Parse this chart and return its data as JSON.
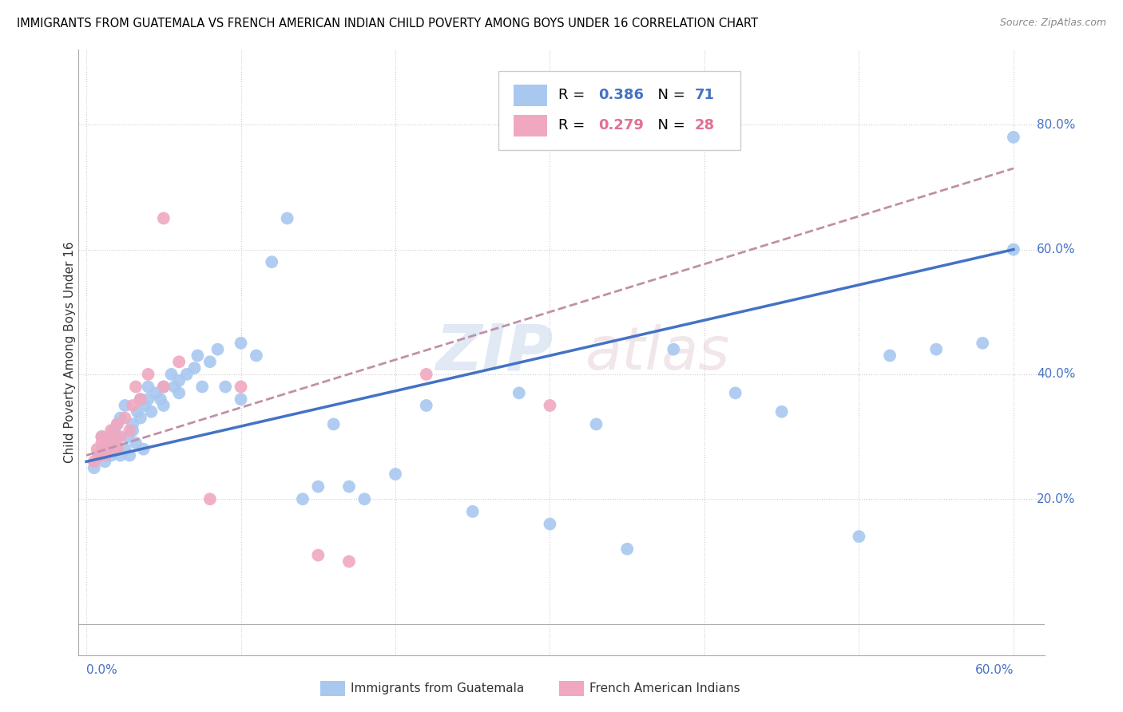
{
  "title": "IMMIGRANTS FROM GUATEMALA VS FRENCH AMERICAN INDIAN CHILD POVERTY AMONG BOYS UNDER 16 CORRELATION CHART",
  "source": "Source: ZipAtlas.com",
  "ylabel": "Child Poverty Among Boys Under 16",
  "y_ticks": [
    "20.0%",
    "40.0%",
    "60.0%",
    "80.0%"
  ],
  "y_tick_vals": [
    0.2,
    0.4,
    0.6,
    0.8
  ],
  "xlim": [
    0.0,
    0.62
  ],
  "ylim": [
    -0.05,
    0.92
  ],
  "color_blue": "#a8c8f0",
  "color_pink": "#f0a8c0",
  "color_blue_line": "#4472c4",
  "color_pink_line": "#c090a8",
  "color_blue_text": "#4472c4",
  "color_pink_text": "#e07090",
  "blue_x": [
    0.005,
    0.008,
    0.01,
    0.01,
    0.012,
    0.013,
    0.015,
    0.015,
    0.016,
    0.018,
    0.019,
    0.02,
    0.02,
    0.022,
    0.022,
    0.025,
    0.025,
    0.027,
    0.028,
    0.03,
    0.03,
    0.032,
    0.033,
    0.035,
    0.035,
    0.037,
    0.038,
    0.04,
    0.04,
    0.042,
    0.045,
    0.048,
    0.05,
    0.05,
    0.055,
    0.057,
    0.06,
    0.06,
    0.065,
    0.07,
    0.072,
    0.075,
    0.08,
    0.085,
    0.09,
    0.1,
    0.1,
    0.11,
    0.12,
    0.13,
    0.14,
    0.15,
    0.16,
    0.17,
    0.18,
    0.2,
    0.22,
    0.25,
    0.28,
    0.3,
    0.33,
    0.35,
    0.38,
    0.42,
    0.45,
    0.5,
    0.52,
    0.55,
    0.58,
    0.6,
    0.6
  ],
  "blue_y": [
    0.25,
    0.27,
    0.28,
    0.3,
    0.26,
    0.29,
    0.28,
    0.3,
    0.27,
    0.31,
    0.29,
    0.3,
    0.32,
    0.27,
    0.33,
    0.28,
    0.35,
    0.3,
    0.27,
    0.31,
    0.32,
    0.29,
    0.34,
    0.33,
    0.36,
    0.28,
    0.35,
    0.36,
    0.38,
    0.34,
    0.37,
    0.36,
    0.35,
    0.38,
    0.4,
    0.38,
    0.37,
    0.39,
    0.4,
    0.41,
    0.43,
    0.38,
    0.42,
    0.44,
    0.38,
    0.45,
    0.36,
    0.43,
    0.58,
    0.65,
    0.2,
    0.22,
    0.32,
    0.22,
    0.2,
    0.24,
    0.35,
    0.18,
    0.37,
    0.16,
    0.32,
    0.12,
    0.44,
    0.37,
    0.34,
    0.14,
    0.43,
    0.44,
    0.45,
    0.6,
    0.78
  ],
  "pink_x": [
    0.005,
    0.007,
    0.008,
    0.01,
    0.01,
    0.012,
    0.013,
    0.015,
    0.016,
    0.018,
    0.02,
    0.02,
    0.022,
    0.025,
    0.028,
    0.03,
    0.032,
    0.035,
    0.04,
    0.05,
    0.05,
    0.06,
    0.08,
    0.1,
    0.15,
    0.17,
    0.22,
    0.3
  ],
  "pink_y": [
    0.26,
    0.28,
    0.27,
    0.29,
    0.3,
    0.27,
    0.28,
    0.3,
    0.31,
    0.29,
    0.28,
    0.32,
    0.3,
    0.33,
    0.31,
    0.35,
    0.38,
    0.36,
    0.4,
    0.38,
    0.65,
    0.42,
    0.2,
    0.38,
    0.11,
    0.1,
    0.4,
    0.35
  ],
  "blue_line_x": [
    0.0,
    0.6
  ],
  "blue_line_y": [
    0.26,
    0.6
  ],
  "pink_line_x": [
    0.0,
    0.3
  ],
  "pink_line_y": [
    0.27,
    0.5
  ]
}
